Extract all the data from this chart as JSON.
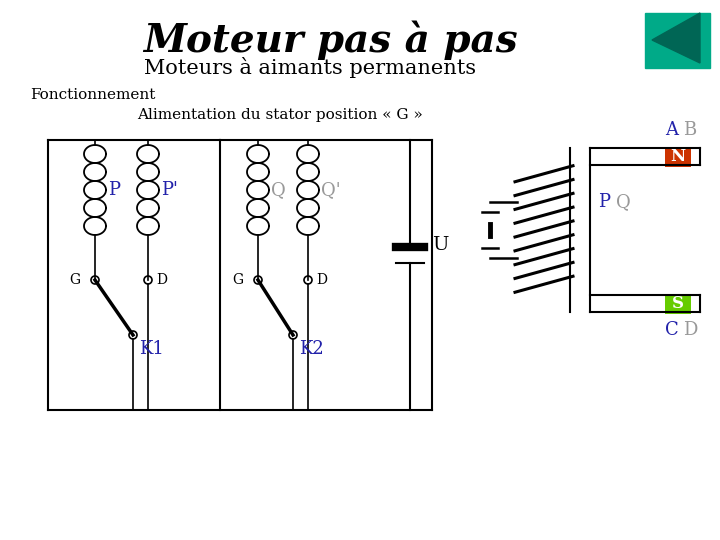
{
  "title": "Moteur pas à pas",
  "subtitle": "Moteurs à aimants permanents",
  "fonctionnement": "Fonctionnement",
  "alimentation": "Alimentation du stator position « G »",
  "bg_color": "#ffffff",
  "title_color": "#000000",
  "subtitle_color": "#000000",
  "label_P_color": "#2222aa",
  "label_Q_color": "#999999",
  "label_K_color": "#2222aa",
  "label_GD_color": "#000000",
  "label_A_color": "#2222aa",
  "label_B_color": "#999999",
  "label_C_color": "#2222aa",
  "label_D_color": "#999999",
  "label_N_color": "#cc3300",
  "label_S_color": "#55cc00",
  "triangle_bg": "#00aa88",
  "triangle_arrow": "#006655"
}
